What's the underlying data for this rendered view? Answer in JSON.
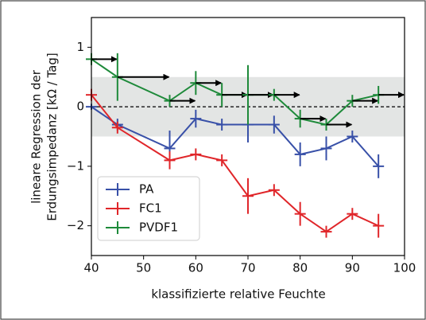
{
  "chart_data": {
    "type": "errorbar-line",
    "ylabel": [
      "lineare Regression der",
      "Erdungsimpedanz [kΩ / Tag]"
    ],
    "xlabel": "klassifizierte relative Feuchte",
    "x": [
      40,
      45,
      55,
      60,
      65,
      70,
      75,
      80,
      85,
      90,
      95
    ],
    "series": [
      {
        "name": "PA",
        "color": "#3850a8",
        "values": [
          0,
          -0.3,
          -0.7,
          -0.2,
          -0.3,
          -0.3,
          -0.3,
          -0.8,
          -0.7,
          -0.5,
          -1.0
        ],
        "errors": [
          0.05,
          0.1,
          0.3,
          0.15,
          0.1,
          0.3,
          0.15,
          0.2,
          0.2,
          0.1,
          0.2
        ]
      },
      {
        "name": "FC1",
        "color": "#e0262a",
        "values": [
          0.2,
          -0.35,
          -0.9,
          -0.8,
          -0.9,
          -1.5,
          -1.4,
          -1.8,
          -2.1,
          -1.8,
          -2.0
        ],
        "errors": [
          0.1,
          0.1,
          0.15,
          0.1,
          0.1,
          0.3,
          0.1,
          0.2,
          0.1,
          0.1,
          0.2
        ]
      },
      {
        "name": "PVDF1",
        "color": "#1e8a3a",
        "values": [
          0.8,
          0.5,
          0.1,
          0.4,
          0.2,
          0.2,
          0.2,
          -0.2,
          -0.3,
          0.1,
          0.2
        ],
        "errors": [
          0.1,
          0.4,
          0.1,
          0.2,
          0.2,
          0.5,
          0.1,
          0.15,
          0.1,
          0.1,
          0.15
        ],
        "arrows": true
      }
    ],
    "xlim": [
      40,
      100
    ],
    "ylim": [
      -2.5,
      1.5
    ],
    "xticks": [
      40,
      50,
      60,
      70,
      80,
      90,
      100
    ],
    "yticks": [
      {
        "value": -2,
        "label": "−2"
      },
      {
        "value": -1,
        "label": "−1"
      },
      0,
      1
    ],
    "band": [
      -0.5,
      0.5
    ],
    "band_color": "#e3e5e4",
    "hline": 0,
    "legend": "lower left"
  }
}
